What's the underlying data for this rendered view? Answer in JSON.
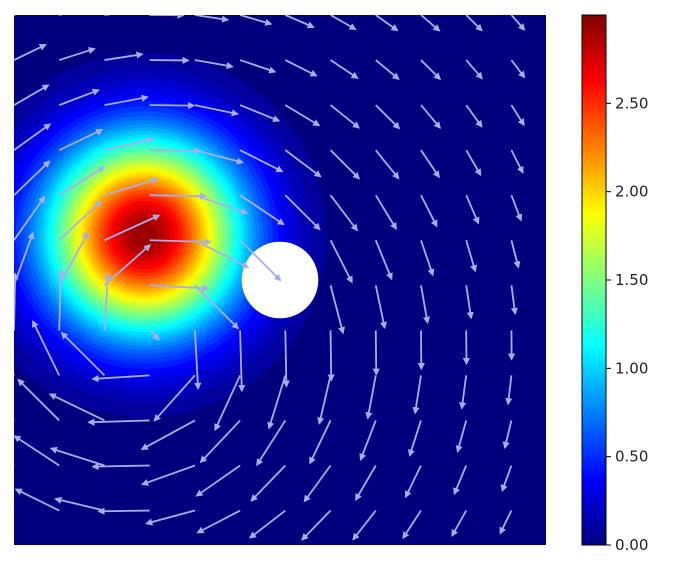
{
  "chart_data": {
    "type": "heatmap",
    "subtype": "filled-contour-with-vector-field",
    "title": "",
    "xlabel": "",
    "ylabel": "",
    "axes_ticks_shown": false,
    "grid": false,
    "colormap": "jet",
    "colormap_stops": [
      "#00007f",
      "#0000ff",
      "#00ffff",
      "#ffff00",
      "#ff0000",
      "#7f0000"
    ],
    "colorbar": {
      "range": [
        0,
        3.0
      ],
      "ticks": [
        0,
        0.5,
        1.0,
        1.5,
        2.0,
        2.5
      ],
      "tick_labels": [
        "0.00",
        "0.50",
        "1.00",
        "1.50",
        "2.00",
        "2.50"
      ],
      "placement": "right"
    },
    "domain": {
      "x": [
        0,
        1
      ],
      "y": [
        0,
        1
      ]
    },
    "field": {
      "peak_center": [
        0.245,
        0.415
      ],
      "peak_value": 2.97,
      "peak_sigma": 0.13
    },
    "obstacle": {
      "center": [
        0.5,
        0.5
      ],
      "radius": 0.072,
      "color": "#ffffff"
    },
    "vectors": {
      "color": "#a9aee8",
      "grid_step": 0.085,
      "rotation_center": [
        0.25,
        0.6
      ],
      "scale": 0.1
    }
  }
}
